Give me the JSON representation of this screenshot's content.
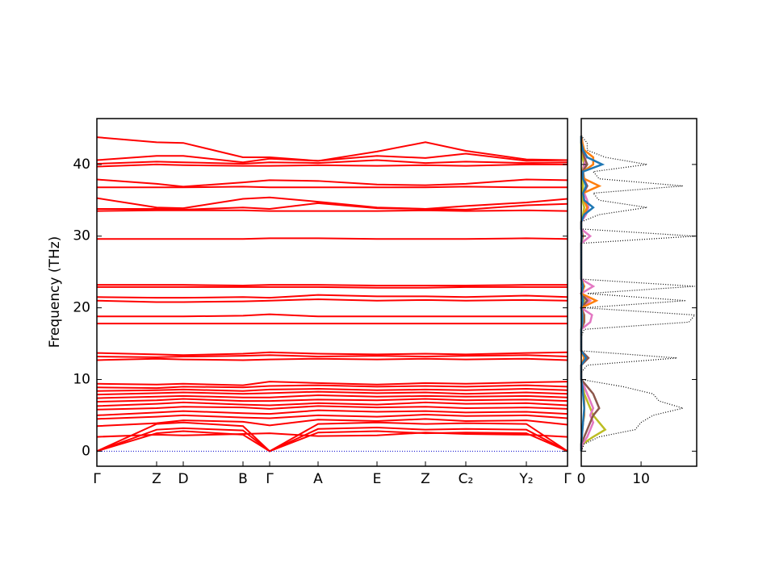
{
  "chart_data": [
    {
      "type": "band_structure",
      "ylabel": "Frequency (THz)",
      "ylim": [
        -2.1,
        46.4
      ],
      "yticks": [
        0,
        10,
        20,
        30,
        40
      ],
      "xlim": [
        0,
        5.83
      ],
      "x": [
        0,
        0.74,
        1.07,
        1.81,
        2.14,
        2.74,
        3.47,
        4.07,
        4.57,
        5.32,
        5.83
      ],
      "xticks": [
        {
          "value": 0,
          "label": "Γ"
        },
        {
          "value": 0.74,
          "label": "Z"
        },
        {
          "value": 1.07,
          "label": "D"
        },
        {
          "value": 1.81,
          "label": "B"
        },
        {
          "value": 2.14,
          "label": "Γ"
        },
        {
          "value": 2.74,
          "label": "A"
        },
        {
          "value": 3.47,
          "label": "E"
        },
        {
          "value": 4.07,
          "label": "Z"
        },
        {
          "value": 4.57,
          "label": "C₂"
        },
        {
          "value": 5.32,
          "label": "Y₂"
        },
        {
          "value": 5.83,
          "label": "Γ"
        }
      ],
      "color": "#ff0000",
      "hline": 0,
      "hline_color": "#0000cc",
      "bands": [
        [
          0,
          2.5,
          2.8,
          2.3,
          0,
          2.6,
          2.8,
          2.5,
          2.6,
          2.5,
          0
        ],
        [
          0,
          3.0,
          3.2,
          2.9,
          0,
          3.1,
          3.3,
          3.0,
          3.1,
          3.0,
          0
        ],
        [
          0,
          3.8,
          4.0,
          3.5,
          0,
          3.8,
          4.0,
          3.8,
          3.9,
          3.8,
          0
        ],
        [
          2.0,
          2.3,
          2.2,
          2.4,
          2.5,
          2.1,
          2.2,
          2.6,
          2.4,
          2.3,
          2.0
        ],
        [
          3.5,
          3.9,
          4.3,
          4.1,
          3.6,
          4.4,
          4.2,
          4.5,
          4.2,
          4.3,
          3.7
        ],
        [
          4.5,
          4.8,
          5.0,
          4.7,
          4.6,
          5.0,
          4.8,
          5.1,
          4.9,
          5.0,
          4.6
        ],
        [
          5.0,
          5.4,
          5.6,
          5.3,
          5.2,
          5.7,
          5.5,
          5.6,
          5.4,
          5.5,
          5.2
        ],
        [
          5.8,
          6.0,
          6.2,
          6.1,
          5.9,
          6.3,
          6.1,
          6.2,
          6.0,
          6.1,
          5.9
        ],
        [
          6.3,
          6.6,
          6.8,
          6.5,
          6.4,
          6.7,
          6.5,
          6.8,
          6.6,
          6.7,
          6.4
        ],
        [
          6.9,
          7.1,
          7.3,
          7.0,
          7.0,
          7.2,
          7.1,
          7.3,
          7.1,
          7.2,
          7.0
        ],
        [
          7.4,
          7.6,
          7.7,
          7.5,
          7.5,
          7.8,
          7.6,
          7.7,
          7.6,
          7.7,
          7.5
        ],
        [
          7.9,
          8.1,
          8.2,
          8.0,
          8.1,
          8.3,
          8.1,
          8.2,
          8.0,
          8.2,
          8.0
        ],
        [
          8.4,
          8.5,
          8.6,
          8.4,
          8.6,
          8.7,
          8.5,
          8.6,
          8.5,
          8.7,
          8.5
        ],
        [
          8.9,
          8.8,
          9.0,
          8.9,
          9.1,
          9.2,
          9.0,
          9.1,
          9.0,
          9.2,
          9.0
        ],
        [
          9.4,
          9.3,
          9.4,
          9.2,
          9.7,
          9.5,
          9.3,
          9.5,
          9.4,
          9.6,
          9.7
        ],
        [
          12.7,
          12.9,
          12.8,
          12.7,
          12.8,
          12.9,
          12.8,
          12.9,
          12.8,
          12.9,
          12.7
        ],
        [
          13.2,
          13.1,
          13.2,
          13.3,
          13.4,
          13.2,
          13.3,
          13.2,
          13.3,
          13.4,
          13.2
        ],
        [
          13.7,
          13.5,
          13.4,
          13.6,
          13.8,
          13.6,
          13.5,
          13.6,
          13.5,
          13.7,
          13.8
        ],
        [
          17.8,
          17.8,
          17.8,
          17.8,
          17.8,
          17.8,
          17.8,
          17.8,
          17.8,
          17.8,
          17.8
        ],
        [
          18.8,
          18.8,
          18.8,
          18.9,
          19.1,
          18.8,
          18.8,
          18.8,
          18.8,
          18.8,
          18.8
        ],
        [
          21.0,
          20.8,
          20.8,
          20.9,
          21.0,
          21.2,
          21.0,
          21.1,
          21.0,
          21.1,
          21.0
        ],
        [
          21.5,
          21.4,
          21.4,
          21.5,
          21.4,
          21.8,
          21.6,
          21.6,
          21.5,
          21.7,
          21.5
        ],
        [
          22.9,
          22.9,
          22.9,
          22.9,
          22.9,
          22.9,
          22.8,
          22.8,
          22.9,
          22.9,
          22.9
        ],
        [
          23.2,
          23.2,
          23.2,
          23.1,
          23.2,
          23.2,
          23.1,
          23.1,
          23.1,
          23.2,
          23.2
        ],
        [
          29.6,
          29.6,
          29.6,
          29.6,
          29.7,
          29.7,
          29.6,
          29.6,
          29.6,
          29.7,
          29.6
        ],
        [
          33.5,
          33.6,
          33.6,
          33.6,
          33.5,
          33.5,
          33.5,
          33.6,
          33.5,
          33.6,
          33.5
        ],
        [
          33.8,
          33.8,
          33.7,
          34.0,
          33.8,
          34.6,
          33.9,
          33.8,
          33.7,
          34.3,
          34.5
        ],
        [
          35.3,
          34.0,
          33.9,
          35.2,
          35.4,
          34.8,
          34.0,
          33.8,
          34.2,
          34.7,
          35.2
        ],
        [
          36.8,
          36.8,
          36.8,
          36.9,
          36.8,
          36.8,
          36.8,
          36.8,
          36.9,
          36.8,
          36.8
        ],
        [
          37.9,
          37.3,
          36.9,
          37.5,
          37.8,
          37.7,
          37.2,
          37.1,
          37.3,
          37.9,
          37.8
        ],
        [
          39.7,
          40.0,
          39.9,
          39.8,
          39.8,
          39.9,
          39.8,
          39.9,
          39.8,
          40.0,
          40.0
        ],
        [
          40.1,
          40.4,
          40.3,
          40.1,
          40.3,
          40.2,
          40.6,
          40.2,
          40.4,
          40.2,
          40.3
        ],
        [
          40.6,
          41.2,
          41.2,
          40.3,
          40.8,
          40.5,
          41.2,
          40.9,
          41.5,
          40.5,
          40.6
        ],
        [
          43.8,
          43.1,
          43.0,
          41.0,
          41.0,
          40.5,
          41.8,
          43.1,
          41.9,
          40.7,
          40.6
        ]
      ]
    },
    {
      "type": "dos",
      "xlim": [
        0,
        19.3
      ],
      "xticks": [
        0,
        10
      ],
      "ylim": [
        -2.1,
        46.4
      ],
      "frequencies": [
        0,
        1,
        2,
        3,
        4,
        5,
        6,
        7,
        8,
        9,
        10,
        11,
        12,
        13,
        14,
        15,
        16,
        17,
        18,
        19,
        20,
        21,
        22,
        23,
        24,
        25,
        26,
        27,
        28,
        29,
        30,
        31,
        32,
        33,
        34,
        35,
        36,
        37,
        38,
        39,
        40,
        41,
        42,
        43,
        44
      ],
      "total": [
        0,
        0.5,
        3,
        9,
        10,
        12,
        17,
        13,
        12,
        7,
        0,
        0,
        1,
        16,
        0,
        0,
        0,
        0.5,
        18,
        19,
        0.5,
        17.5,
        1,
        19,
        0,
        0,
        0,
        0,
        0,
        0,
        19,
        0,
        0,
        3,
        11,
        3,
        2,
        17,
        3,
        2,
        11,
        4,
        1,
        1,
        0
      ],
      "total_color": "#000000",
      "partials": [
        {
          "color": "#bcbd22",
          "values": [
            0,
            0.2,
            2,
            4,
            3,
            2,
            1.5,
            1,
            0.5,
            0.3,
            0,
            0,
            0,
            0.5,
            0,
            0,
            0,
            0,
            0.3,
            0.3,
            0,
            0.5,
            0,
            0.5,
            0,
            0,
            0,
            0,
            0,
            0,
            0.2,
            0,
            0,
            0.3,
            0.5,
            0.2,
            0.1,
            0.3,
            0.1,
            0.1,
            0.5,
            0.2,
            0,
            0,
            0
          ]
        },
        {
          "color": "#e377c2",
          "values": [
            0,
            0.2,
            1,
            1.5,
            2,
            1.5,
            2,
            1.5,
            1,
            0.5,
            0,
            0,
            0,
            1,
            0,
            0,
            0,
            0,
            1.5,
            1.8,
            0,
            1.5,
            0,
            2,
            0,
            0,
            0,
            0,
            0,
            0,
            1.5,
            0,
            0,
            0.8,
            1.2,
            1,
            0.5,
            1,
            0.5,
            0.3,
            0.5,
            0.8,
            0.3,
            0.2,
            0
          ]
        },
        {
          "color": "#8c564b",
          "values": [
            0,
            0,
            0.5,
            1,
            1.5,
            2,
            3,
            2.5,
            2,
            1,
            0,
            0,
            0,
            1.2,
            0,
            0,
            0,
            0,
            0.5,
            0.5,
            0,
            1,
            0,
            0.5,
            0,
            0,
            0,
            0,
            0,
            0,
            0.3,
            0,
            0,
            0.5,
            1,
            0.5,
            0.3,
            1,
            0.3,
            0.2,
            1,
            0.5,
            0.2,
            0,
            0
          ]
        },
        {
          "color": "#ff7f0e",
          "values": [
            0,
            0,
            0.1,
            0.2,
            0.3,
            0.5,
            0.5,
            0.5,
            0.3,
            0.2,
            0,
            0,
            0,
            0.5,
            0,
            0,
            0,
            0,
            0.3,
            0.3,
            0,
            2.5,
            0,
            0.5,
            0,
            0,
            0,
            0,
            0,
            0,
            0.2,
            0,
            0,
            0.5,
            1,
            0.5,
            0.3,
            3,
            0.5,
            0.3,
            2,
            2,
            0.5,
            0.2,
            0
          ]
        },
        {
          "color": "#1f77b4",
          "values": [
            0,
            0,
            0.1,
            0.2,
            0.3,
            0.4,
            0.5,
            0.4,
            0.3,
            0.2,
            0,
            0,
            0,
            0.8,
            0,
            0,
            0,
            0,
            0.2,
            0.2,
            0,
            0.3,
            0,
            0.3,
            0,
            0,
            0,
            0,
            0,
            0,
            0.1,
            0,
            0,
            0.5,
            2,
            0.5,
            0.3,
            0.8,
            0.3,
            0.3,
            3.5,
            1,
            0.3,
            0,
            0
          ]
        }
      ]
    }
  ]
}
